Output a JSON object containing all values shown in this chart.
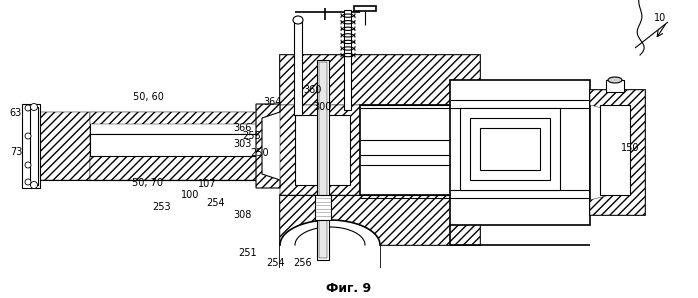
{
  "title": "Фиг. 9",
  "background_color": "#ffffff",
  "line_color": "#000000",
  "figsize": [
    6.98,
    2.98
  ],
  "dpi": 100,
  "labels": [
    [
      660,
      18,
      "10"
    ],
    [
      16,
      113,
      "63"
    ],
    [
      16,
      152,
      "73"
    ],
    [
      148,
      97,
      "50, 60"
    ],
    [
      148,
      183,
      "50, 70"
    ],
    [
      190,
      195,
      "100"
    ],
    [
      207,
      184,
      "107"
    ],
    [
      162,
      207,
      "253"
    ],
    [
      216,
      203,
      "254"
    ],
    [
      243,
      215,
      "308"
    ],
    [
      248,
      253,
      "251"
    ],
    [
      276,
      263,
      "254"
    ],
    [
      303,
      263,
      "256"
    ],
    [
      243,
      144,
      "303"
    ],
    [
      260,
      153,
      "250"
    ],
    [
      252,
      136,
      "255"
    ],
    [
      243,
      128,
      "366"
    ],
    [
      272,
      102,
      "364"
    ],
    [
      313,
      90,
      "360"
    ],
    [
      323,
      107,
      "300"
    ],
    [
      630,
      148,
      "150"
    ]
  ]
}
